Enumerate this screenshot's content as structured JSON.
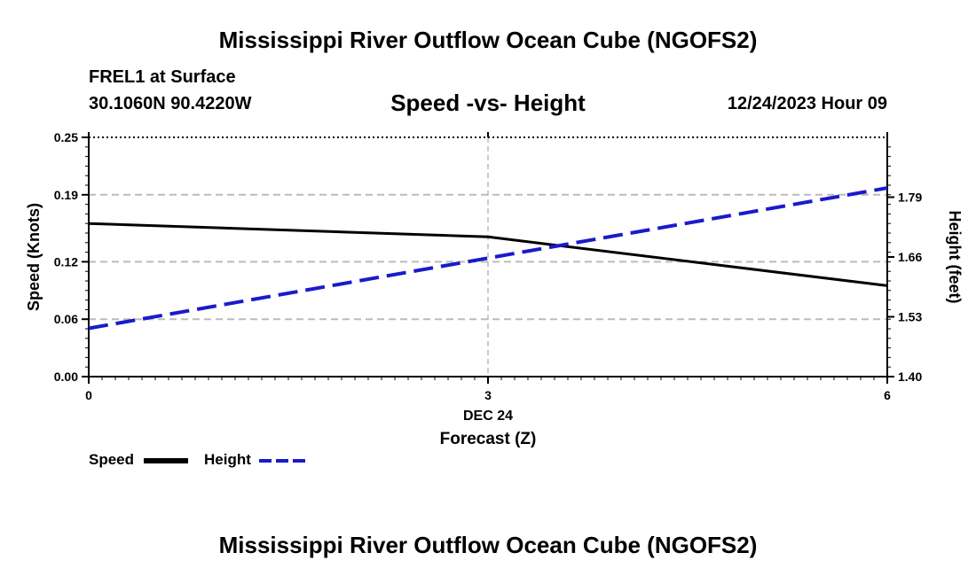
{
  "header": {
    "title": "Mississippi River Outflow Ocean Cube (NGOFS2)",
    "station": "FREL1 at Surface",
    "coordinates": "30.1060N  90.4220W",
    "subtitle": "Speed -vs- Height",
    "datetime": "12/24/2023 Hour 09"
  },
  "footer": {
    "title": "Mississippi River Outflow Ocean Cube (NGOFS2)"
  },
  "legend": {
    "speed_label": "Speed",
    "height_label": "Height"
  },
  "colors": {
    "speed": "#000000",
    "height": "#1a1acc",
    "grid": "#bbbbbb",
    "axis": "#000000"
  },
  "chart_data": {
    "type": "line",
    "title": "Speed -vs- Height",
    "xlabel": "Forecast (Z)",
    "xlabel_date": "DEC 24",
    "ylabel": "Speed (Knots)",
    "y2label": "Height (feet)",
    "x": [
      0,
      3,
      6
    ],
    "xlim": [
      0,
      6
    ],
    "xticks": [
      0,
      3,
      6
    ],
    "xtick_labels": [
      "0",
      "3",
      "6"
    ],
    "ylim": [
      0,
      0.25
    ],
    "yticks": [
      0.0,
      0.06,
      0.12,
      0.19,
      0.25
    ],
    "ytick_labels": [
      "0.00",
      "0.06",
      "0.12",
      "0.19",
      "0.25"
    ],
    "y2lim": [
      1.4,
      1.92
    ],
    "y2ticks": [
      1.4,
      1.53,
      1.66,
      1.79
    ],
    "y2tick_labels": [
      "1.40",
      "1.53",
      "1.66",
      "1.79"
    ],
    "grid": true,
    "series": [
      {
        "name": "Speed",
        "axis": "left",
        "style": "solid",
        "x": [
          0,
          3,
          6
        ],
        "values": [
          0.16,
          0.146,
          0.095
        ]
      },
      {
        "name": "Height",
        "axis": "right",
        "style": "dashed",
        "x": [
          0,
          6
        ],
        "values": [
          1.505,
          1.81
        ]
      }
    ]
  }
}
